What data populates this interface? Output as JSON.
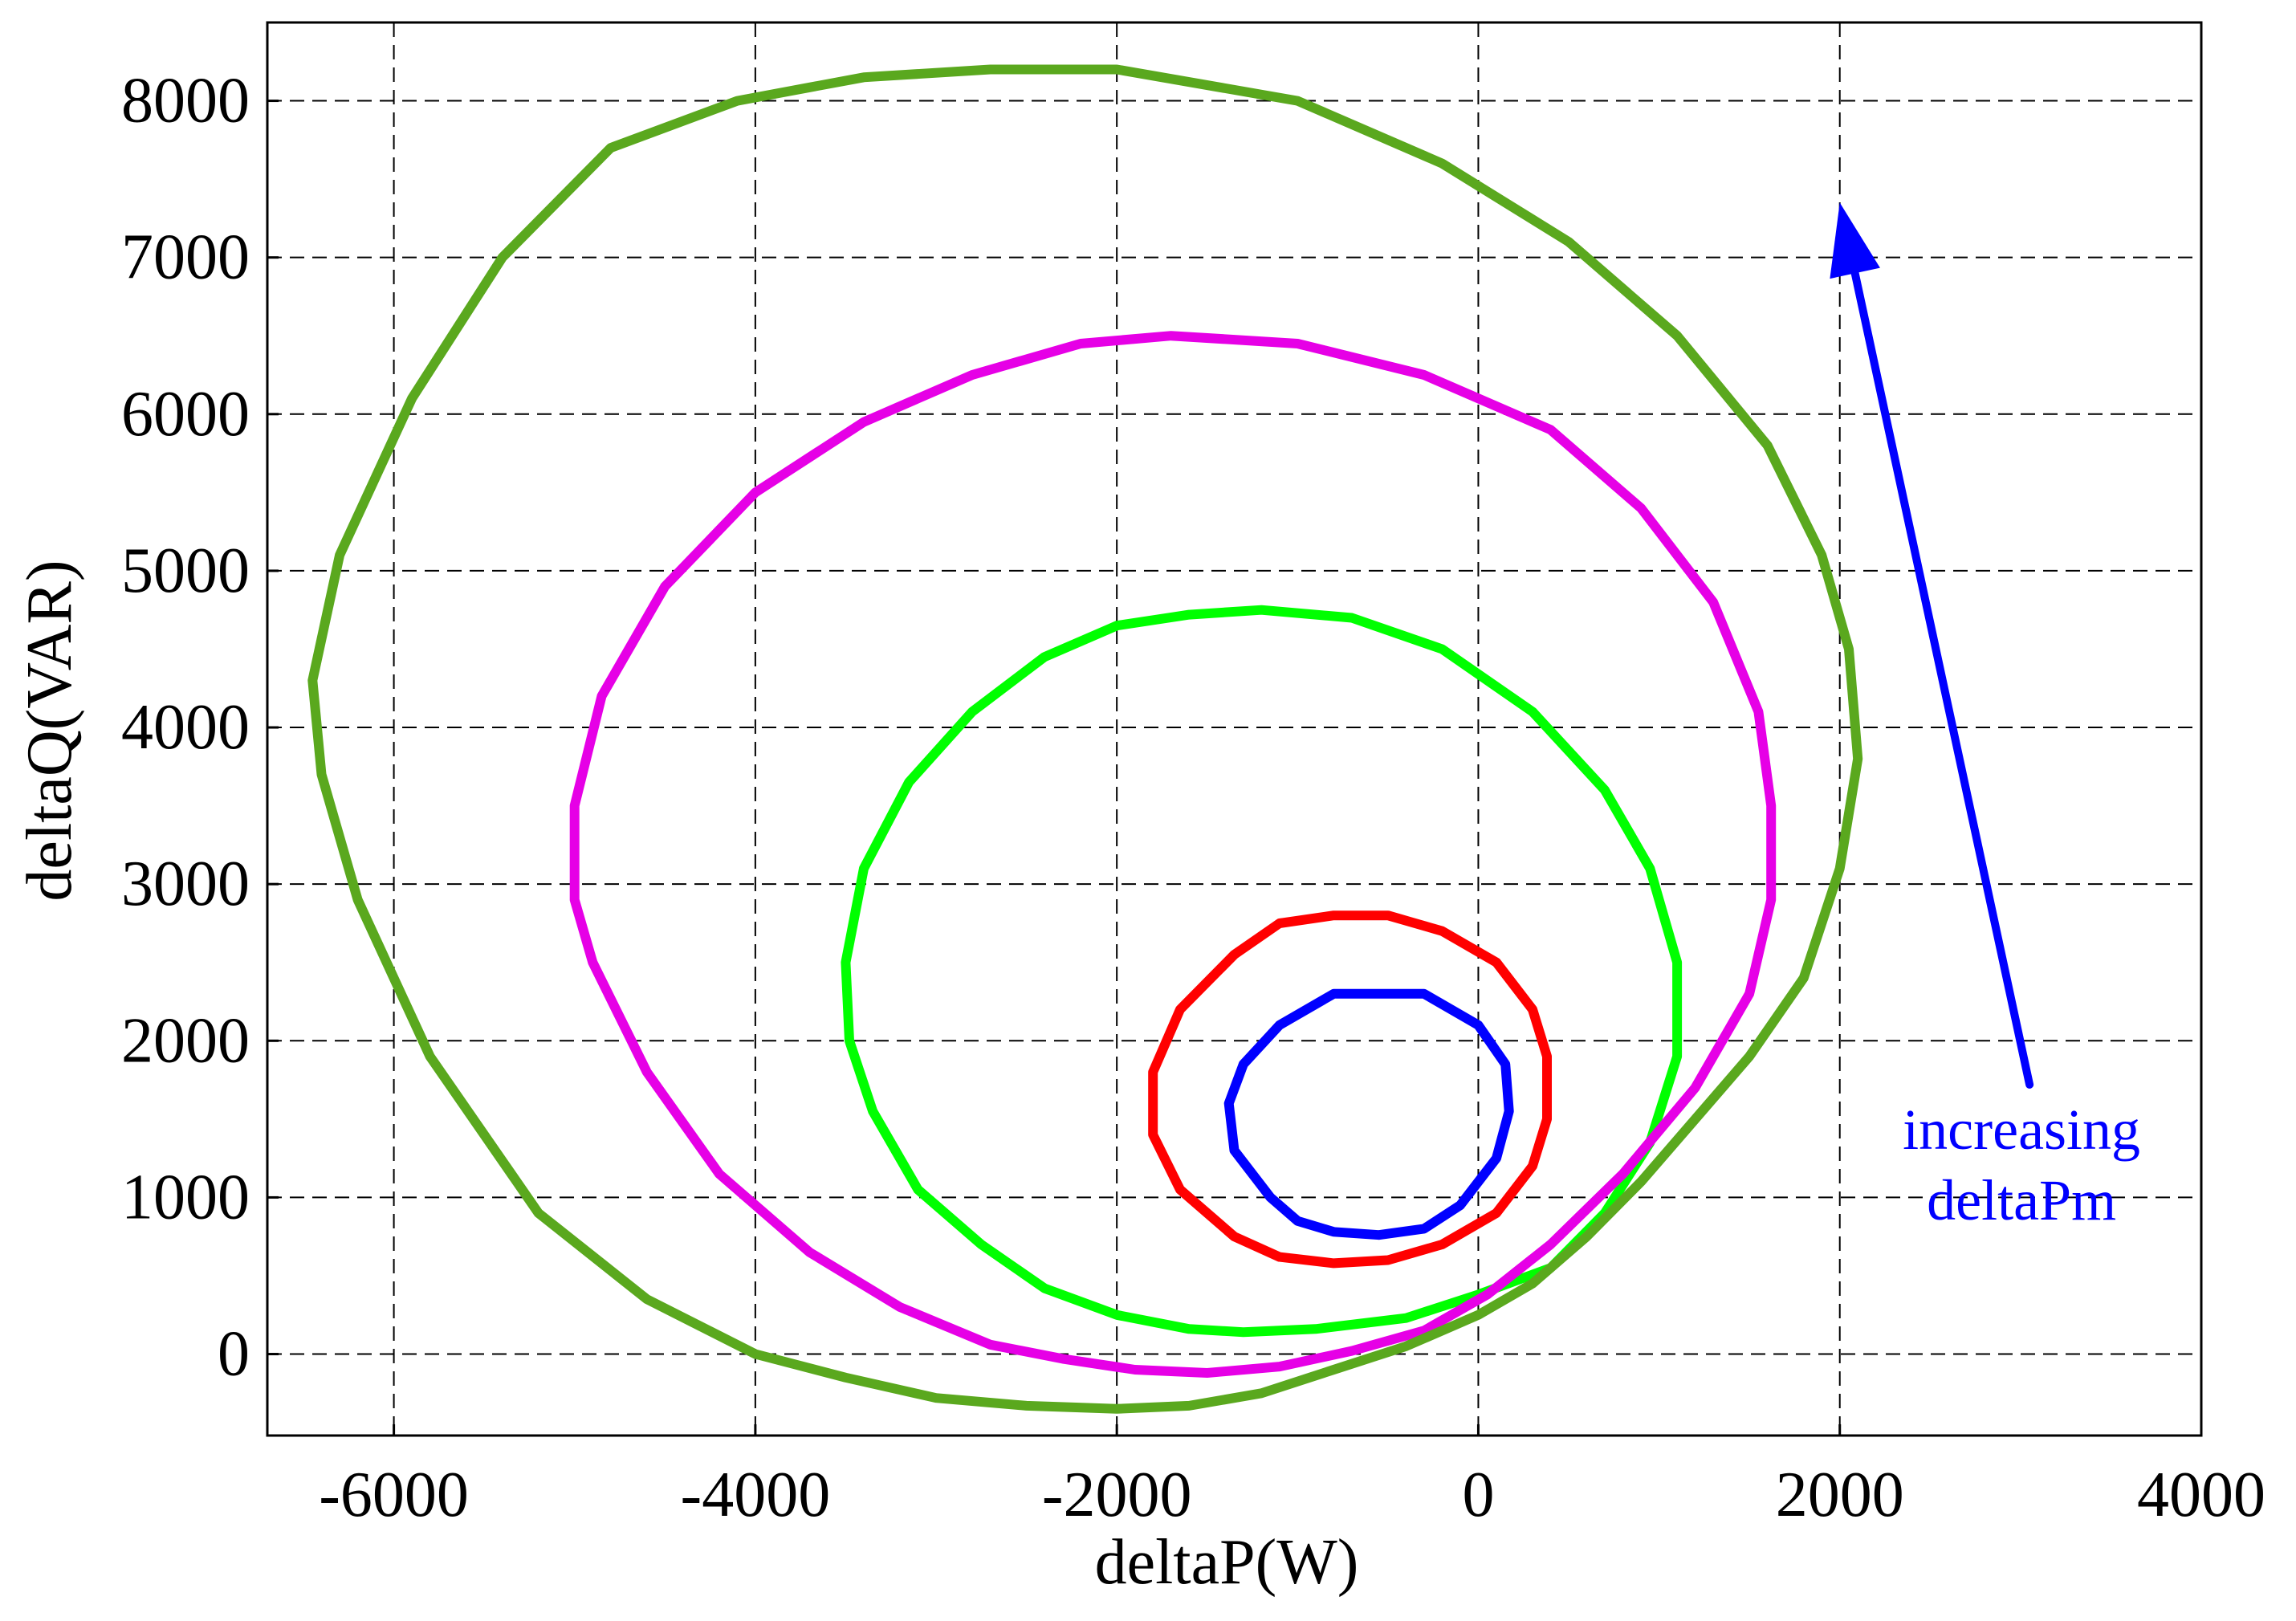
{
  "chart_data": {
    "type": "line",
    "title": "",
    "xlabel": "deltaP(W)",
    "ylabel": "deltaQ(VAR)",
    "xlim": [
      -6700,
      4000
    ],
    "ylim": [
      -520,
      8500
    ],
    "xticks": [
      -6000,
      -4000,
      -2000,
      0,
      2000,
      4000
    ],
    "yticks": [
      0,
      1000,
      2000,
      3000,
      4000,
      5000,
      6000,
      7000,
      8000
    ],
    "xtick_labels": [
      "-6000",
      "-4000",
      "-2000",
      "0",
      "2000",
      "4000"
    ],
    "ytick_labels": [
      "0",
      "1000",
      "2000",
      "3000",
      "4000",
      "5000",
      "6000",
      "7000",
      "8000"
    ],
    "grid": true,
    "series": [
      {
        "color": "#0000ff",
        "x": [
          -800,
          -300,
          0,
          150,
          170,
          100,
          -100,
          -300,
          -550,
          -800,
          -1000,
          -1150,
          -1350,
          -1380,
          -1300,
          -1100,
          -800
        ],
        "y": [
          2300,
          2300,
          2100,
          1850,
          1550,
          1250,
          950,
          800,
          760,
          780,
          850,
          1000,
          1300,
          1600,
          1850,
          2100,
          2300
        ]
      },
      {
        "color": "#ff0000",
        "x": [
          -800,
          -500,
          -200,
          100,
          300,
          380,
          380,
          300,
          100,
          -200,
          -500,
          -800,
          -1100,
          -1350,
          -1650,
          -1800,
          -1800,
          -1650,
          -1350,
          -1100,
          -800
        ],
        "y": [
          2800,
          2800,
          2700,
          2500,
          2200,
          1900,
          1500,
          1200,
          900,
          700,
          600,
          580,
          620,
          750,
          1050,
          1400,
          1800,
          2200,
          2550,
          2750,
          2800
        ]
      },
      {
        "color": "#00ff00",
        "x": [
          -1200,
          -700,
          -200,
          300,
          700,
          950,
          1100,
          1100,
          950,
          700,
          400,
          0,
          -400,
          -900,
          -1300,
          -1600,
          -2000,
          -2400,
          -2750,
          -3100,
          -3350,
          -3480,
          -3500,
          -3400,
          -3150,
          -2800,
          -2400,
          -2000,
          -1600,
          -1200
        ],
        "y": [
          4750,
          4700,
          4500,
          4100,
          3600,
          3100,
          2500,
          1900,
          1350,
          900,
          550,
          380,
          230,
          160,
          140,
          160,
          250,
          420,
          700,
          1050,
          1550,
          2000,
          2500,
          3100,
          3650,
          4100,
          4450,
          4650,
          4720,
          4750
        ]
      },
      {
        "color": "#e600e6",
        "x": [
          -1700,
          -1000,
          -300,
          400,
          900,
          1300,
          1550,
          1620,
          1620,
          1500,
          1200,
          800,
          400,
          50,
          -300,
          -700,
          -1100,
          -1500,
          -1900,
          -2300,
          -2700,
          -3200,
          -3700,
          -4200,
          -4600,
          -4900,
          -5000,
          -5000,
          -4850,
          -4500,
          -4000,
          -3400,
          -2800,
          -2200,
          -1700
        ],
        "y": [
          6500,
          6450,
          6250,
          5900,
          5400,
          4800,
          4100,
          3500,
          2900,
          2300,
          1700,
          1150,
          700,
          380,
          150,
          20,
          -80,
          -120,
          -100,
          -30,
          60,
          300,
          650,
          1150,
          1800,
          2500,
          2900,
          3500,
          4200,
          4900,
          5500,
          5950,
          6250,
          6450,
          6500
        ]
      },
      {
        "color": "#5aa81e",
        "x": [
          -2000,
          -1000,
          -200,
          500,
          1100,
          1600,
          1900,
          2050,
          2100,
          2000,
          1800,
          1500,
          1200,
          900,
          600,
          300,
          0,
          -400,
          -800,
          -1200,
          -1600,
          -2000,
          -2500,
          -3000,
          -3500,
          -4000,
          -4600,
          -5200,
          -5800,
          -6200,
          -6400,
          -6450,
          -6300,
          -5900,
          -5400,
          -4800,
          -4100,
          -3400,
          -2700,
          -2000
        ],
        "y": [
          8200,
          8000,
          7600,
          7100,
          6500,
          5800,
          5100,
          4500,
          3800,
          3100,
          2400,
          1900,
          1500,
          1100,
          750,
          450,
          250,
          50,
          -100,
          -250,
          -330,
          -350,
          -330,
          -280,
          -150,
          0,
          350,
          900,
          1900,
          2900,
          3700,
          4300,
          5100,
          6100,
          7000,
          7700,
          8000,
          8150,
          8200,
          8200
        ]
      }
    ],
    "annotations": [
      {
        "text_lines": [
          "increasing",
          "deltaPm"
        ],
        "color": "#0000ff",
        "arrow_from": [
          3050,
          1720
        ],
        "arrow_to": [
          2000,
          7350
        ]
      }
    ]
  }
}
